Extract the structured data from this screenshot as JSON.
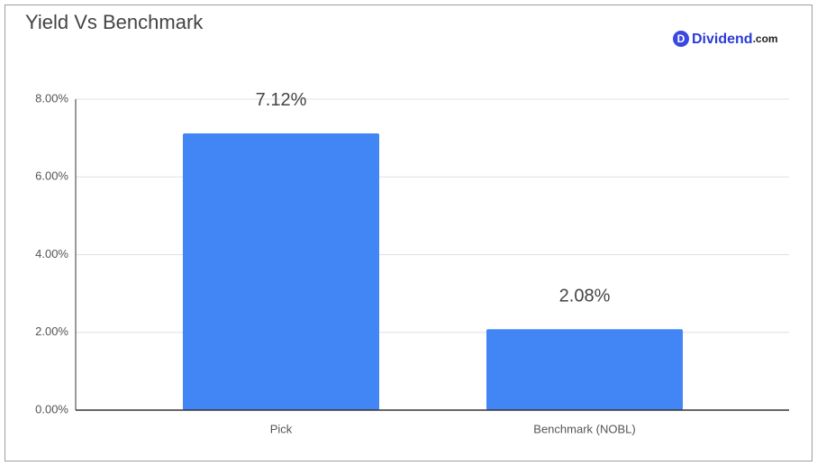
{
  "chart_data": {
    "type": "bar",
    "title": "Yield Vs Benchmark",
    "brand": {
      "mark": "D",
      "name": "Dividend",
      "suffix": ".com"
    },
    "categories": [
      "Pick",
      "Benchmark (NOBL)"
    ],
    "values": [
      7.12,
      2.08
    ],
    "value_labels": [
      "7.12%",
      "2.08%"
    ],
    "color": "#4285f4",
    "ylim": [
      0,
      8
    ],
    "yticks": [
      {
        "value": 0,
        "label": "0.00%"
      },
      {
        "value": 2,
        "label": "2.00%"
      },
      {
        "value": 4,
        "label": "4.00%"
      },
      {
        "value": 6,
        "label": "6.00%"
      },
      {
        "value": 8,
        "label": "8.00%"
      }
    ],
    "grid": true
  }
}
